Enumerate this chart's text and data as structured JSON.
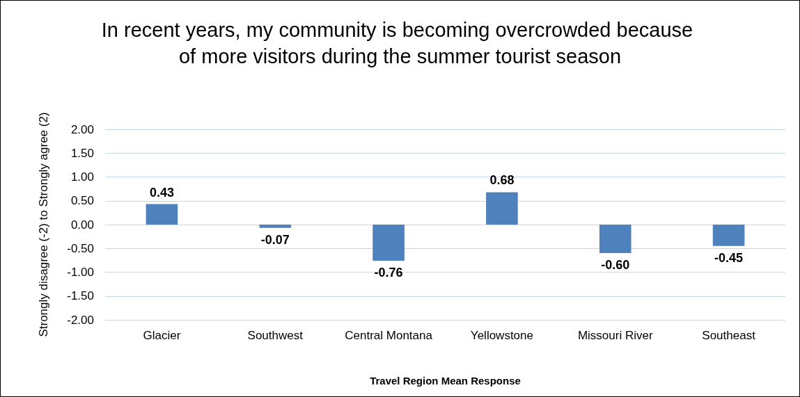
{
  "chart_data": {
    "type": "bar",
    "title": "In recent years, my community is becoming overcrowded because of more visitors during the summer tourist season",
    "xlabel": "Travel Region Mean Response",
    "ylabel": "Strongly disagree (-2) to Strongly agree (2)",
    "categories": [
      "Glacier",
      "Southwest",
      "Central Montana",
      "Yellowstone",
      "Missouri River",
      "Southeast"
    ],
    "values": [
      0.43,
      -0.07,
      -0.76,
      0.68,
      -0.6,
      -0.45
    ],
    "value_labels": [
      "0.43",
      "-0.07",
      "-0.76",
      "0.68",
      "-0.60",
      "-0.45"
    ],
    "color": "#4f81bd",
    "ylim": [
      -2,
      2
    ],
    "yticks": [
      {
        "value": -2,
        "label": "-2.00"
      },
      {
        "value": -1.5,
        "label": "-1.50"
      },
      {
        "value": -1,
        "label": "-1.00"
      },
      {
        "value": -0.5,
        "label": "-0.50"
      },
      {
        "value": 0,
        "label": "0.00"
      },
      {
        "value": 0.5,
        "label": "0.50"
      },
      {
        "value": 1,
        "label": "1.00"
      },
      {
        "value": 1.5,
        "label": "1.50"
      },
      {
        "value": 2,
        "label": "2.00"
      }
    ],
    "grid": "y"
  }
}
